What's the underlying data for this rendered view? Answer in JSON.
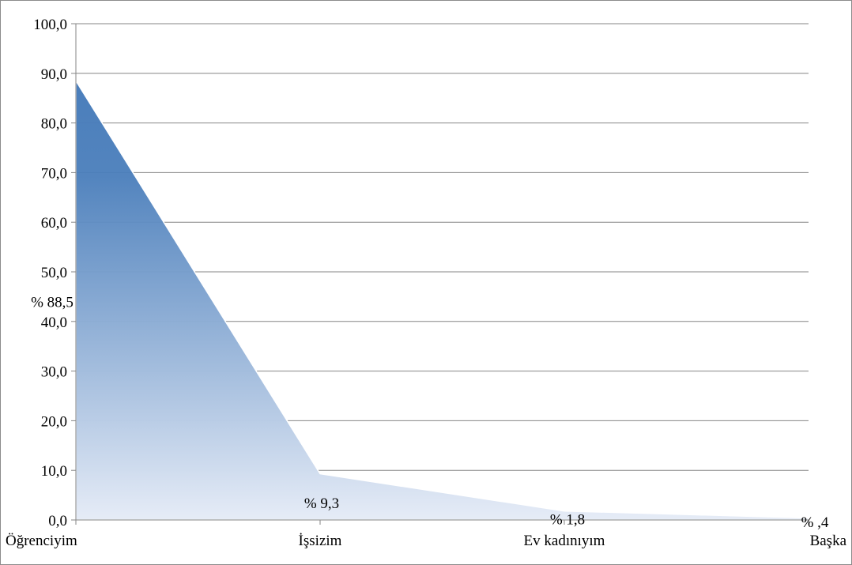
{
  "chart_data": {
    "type": "area",
    "categories": [
      "Öğrenciyim",
      "İşsizim",
      "Ev kadınıyım",
      "Başka"
    ],
    "values": [
      88.5,
      9.3,
      1.8,
      0.4
    ],
    "data_labels": [
      "% 88,5",
      "% 9,3",
      "% 1,8",
      "% ,4"
    ],
    "y_ticks": [
      "0,0",
      "10,0",
      "20,0",
      "30,0",
      "40,0",
      "50,0",
      "60,0",
      "70,0",
      "80,0",
      "90,0",
      "100,0"
    ],
    "ylim": [
      0,
      100
    ],
    "grid": true,
    "legend": "none",
    "colors": {
      "fill_top": "#4a7ebb",
      "fill_bottom": "#e6ecf7",
      "gridline": "#868686",
      "axis": "#868686"
    }
  }
}
